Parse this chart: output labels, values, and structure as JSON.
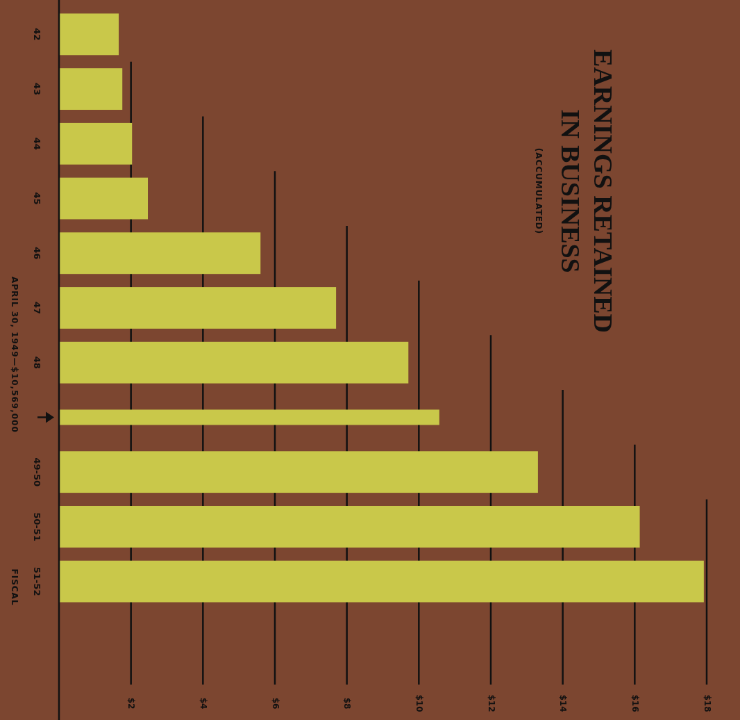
{
  "chart_data": {
    "type": "bar",
    "orientation": "horizontal",
    "title": "EARNINGS RETAINED IN BUSINESS",
    "subtitle": "(ACCUMULATED)",
    "ylabel": "FISCAL",
    "categories": [
      "42",
      "43",
      "44",
      "45",
      "46",
      "47",
      "48",
      null,
      "49-50",
      "50-51",
      "51-52"
    ],
    "values": [
      1.66,
      1.76,
      2.03,
      2.47,
      5.6,
      7.7,
      9.71,
      10.57,
      13.31,
      16.14,
      17.92
    ],
    "color": "#c9c84a",
    "xlim": [
      0,
      18
    ],
    "xticks": [
      {
        "value": 2,
        "label": "$2"
      },
      {
        "value": 4,
        "label": "$4"
      },
      {
        "value": 6,
        "label": "$6"
      },
      {
        "value": 8,
        "label": "$8"
      },
      {
        "value": 10,
        "label": "$10"
      },
      {
        "value": 12,
        "label": "$12"
      },
      {
        "value": 14,
        "label": "$14"
      },
      {
        "value": 16,
        "label": "$16"
      },
      {
        "value": 18,
        "label": "$18"
      }
    ],
    "ref_lines": [
      {
        "axis": "x",
        "value": 2
      },
      {
        "axis": "x",
        "value": 4
      },
      {
        "axis": "x",
        "value": 6
      },
      {
        "axis": "x",
        "value": 8
      },
      {
        "axis": "x",
        "value": 10
      },
      {
        "axis": "x",
        "value": 12
      },
      {
        "axis": "x",
        "value": 14
      },
      {
        "axis": "x",
        "value": 16
      },
      {
        "axis": "x",
        "value": 18
      }
    ],
    "annotations": [
      "APRIL 30, 1949—$10,569,000"
    ]
  }
}
